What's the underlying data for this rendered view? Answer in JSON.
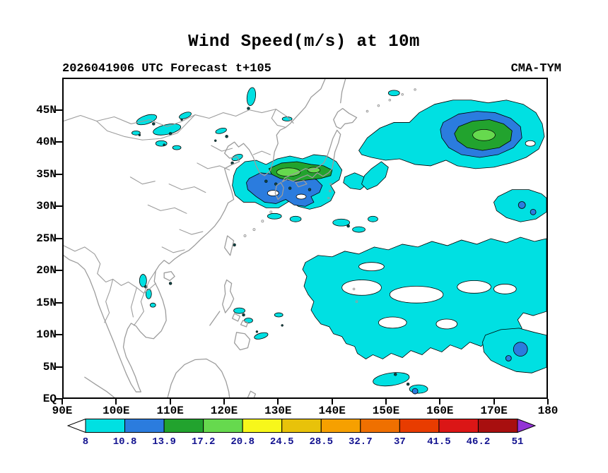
{
  "title": "Wind Speed(m/s) at 10m",
  "header": {
    "left": "2026041906 UTC Forecast t+105",
    "right": "CMA-TYM"
  },
  "chart_data": {
    "type": "heatmap",
    "title": "Wind Speed(m/s) at 10m",
    "model": "CMA-TYM",
    "init_time": "2026041906 UTC",
    "forecast_lead": "t+105",
    "units": "m/s",
    "x_axis": {
      "label": "longitude",
      "range": [
        90,
        180
      ],
      "ticks": [
        {
          "value": 90,
          "label": "90E"
        },
        {
          "value": 100,
          "label": "100E"
        },
        {
          "value": 110,
          "label": "110E"
        },
        {
          "value": 120,
          "label": "120E"
        },
        {
          "value": 130,
          "label": "130E"
        },
        {
          "value": 140,
          "label": "140E"
        },
        {
          "value": 150,
          "label": "150E"
        },
        {
          "value": 160,
          "label": "160E"
        },
        {
          "value": 170,
          "label": "170E"
        },
        {
          "value": 180,
          "label": "180"
        }
      ]
    },
    "y_axis": {
      "label": "latitude",
      "range": [
        0,
        50
      ],
      "ticks": [
        {
          "value": 0,
          "label": "EQ"
        },
        {
          "value": 5,
          "label": "5N"
        },
        {
          "value": 10,
          "label": "10N"
        },
        {
          "value": 15,
          "label": "15N"
        },
        {
          "value": 20,
          "label": "20N"
        },
        {
          "value": 25,
          "label": "25N"
        },
        {
          "value": 30,
          "label": "30N"
        },
        {
          "value": 35,
          "label": "35N"
        },
        {
          "value": 40,
          "label": "40N"
        },
        {
          "value": 45,
          "label": "45N"
        }
      ]
    },
    "colorbar": {
      "levels": [
        "8",
        "10.8",
        "13.9",
        "17.2",
        "20.8",
        "24.5",
        "28.5",
        "32.7",
        "37",
        "41.5",
        "46.2",
        "51"
      ],
      "colors": [
        "#00E0E2",
        "#2B7CDE",
        "#22A32E",
        "#66D94E",
        "#F7F71B",
        "#E8C20A",
        "#F6A000",
        "#EF7000",
        "#E83C00",
        "#DB1616",
        "#A80F0F"
      ],
      "arrow_left": "#FFFFFF",
      "arrow_right": "#9333D6",
      "label_color": "#12128F"
    },
    "map_colors": {
      "coastline": "#9C9C9C",
      "contour": "#000000",
      "dark_speck": "#0E4444",
      "ocean": "#FFFFFF"
    },
    "features": [
      {
        "region": "Storm system over East China Sea / western Japan (28-35N, 122-140E)",
        "bands": "8 to 20.8 m/s, core 17.2-20.8 m/s"
      },
      {
        "region": "Large system in North Pacific (35-45N, 147-180E)",
        "bands": "8 to 20.8 m/s, core 13.9-17.2 m/s"
      },
      {
        "region": "Broad trade-wind field (3-22N, 133-180E)",
        "bands": "8-10.8 m/s with embedded calm holes"
      },
      {
        "region": "Patch near 25-30N, 168-180E",
        "bands": "8-13.9 m/s"
      },
      {
        "region": "Spot near 5-8N, 172-176E",
        "bands": "10.8-13.9 m/s"
      },
      {
        "region": "Scattered patches over N China / Mongolia (38-45N, 102-115E)",
        "bands": "8-10.8 m/s"
      },
      {
        "region": "Small coastal patches: Vietnam coast, Philippine Sea, 0-10N band",
        "bands": "8-10.8 m/s"
      }
    ]
  }
}
